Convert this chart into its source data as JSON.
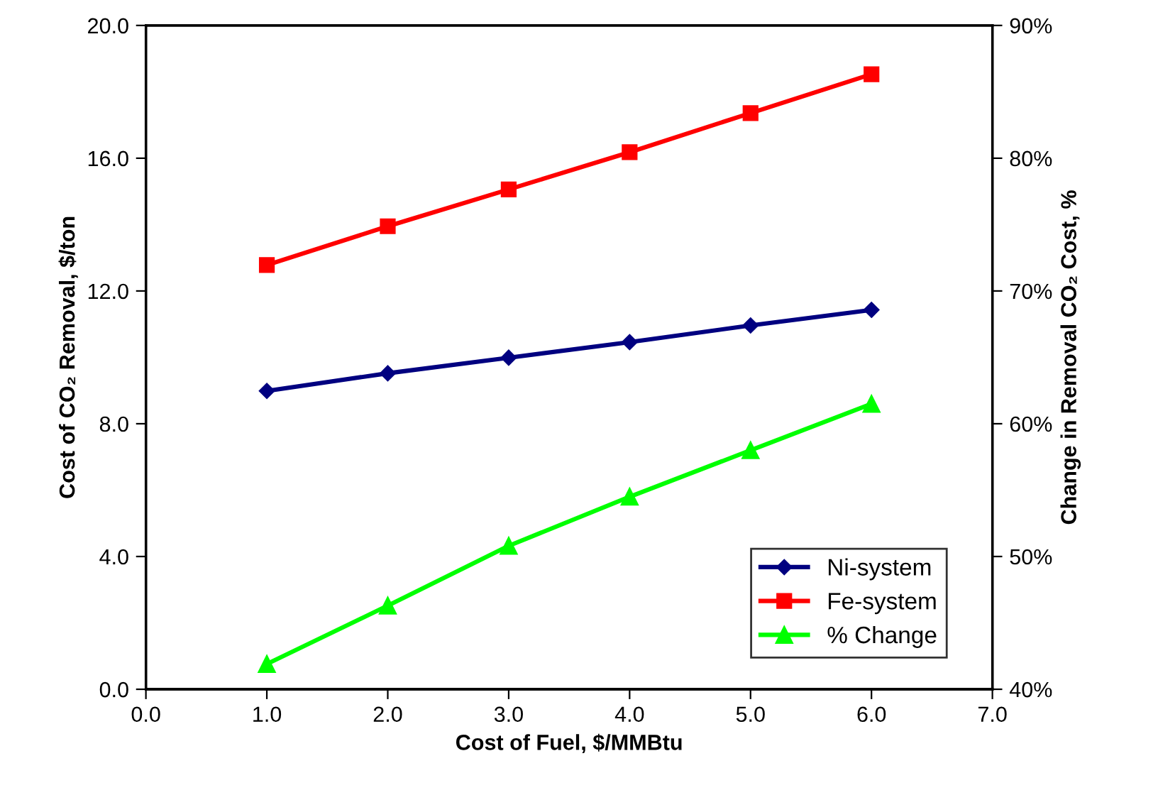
{
  "chart_data": {
    "type": "line",
    "xlabel": "Cost of Fuel, $/MMBtu",
    "ylabel": "Cost of CO₂ Removal, $/ton",
    "y2label": "Change in Removal CO₂ Cost, %",
    "x": [
      1,
      2,
      3,
      4,
      5,
      6
    ],
    "series": [
      {
        "name": "Ni-system",
        "color": "#000080",
        "marker": "diamond",
        "values": [
          8.99,
          9.52,
          9.99,
          10.46,
          10.96,
          11.43
        ]
      },
      {
        "name": "Fe-system",
        "color": "#ff0000",
        "marker": "square",
        "values": [
          12.78,
          13.95,
          15.06,
          16.18,
          17.36,
          18.53
        ]
      },
      {
        "name": "% Change",
        "color": "#00ff00",
        "marker": "triangle",
        "axis": "y2",
        "values": [
          41.9,
          46.3,
          50.8,
          54.5,
          58.0,
          61.5
        ]
      }
    ],
    "xlim": [
      0,
      7
    ],
    "xticks": [
      {
        "value": 0,
        "label": "0.0"
      },
      {
        "value": 1,
        "label": "1.0"
      },
      {
        "value": 2,
        "label": "2.0"
      },
      {
        "value": 3,
        "label": "3.0"
      },
      {
        "value": 4,
        "label": "4.0"
      },
      {
        "value": 5,
        "label": "5.0"
      },
      {
        "value": 6,
        "label": "6.0"
      },
      {
        "value": 7,
        "label": "7.0"
      }
    ],
    "ylim": [
      0,
      20
    ],
    "yticks": [
      {
        "value": 0,
        "label": "0.0"
      },
      {
        "value": 4,
        "label": "4.0"
      },
      {
        "value": 8,
        "label": "8.0"
      },
      {
        "value": 12,
        "label": "12.0"
      },
      {
        "value": 16,
        "label": "16.0"
      },
      {
        "value": 20,
        "label": "20.0"
      }
    ],
    "y2lim": [
      40,
      90
    ],
    "y2ticks": [
      {
        "value": 40,
        "label": "40%"
      },
      {
        "value": 50,
        "label": "50%"
      },
      {
        "value": 60,
        "label": "60%"
      },
      {
        "value": 70,
        "label": "70%"
      },
      {
        "value": 80,
        "label": "80%"
      },
      {
        "value": 90,
        "label": "90%"
      }
    ],
    "grid": false,
    "legend": "bottom right",
    "line_style": "solid"
  }
}
